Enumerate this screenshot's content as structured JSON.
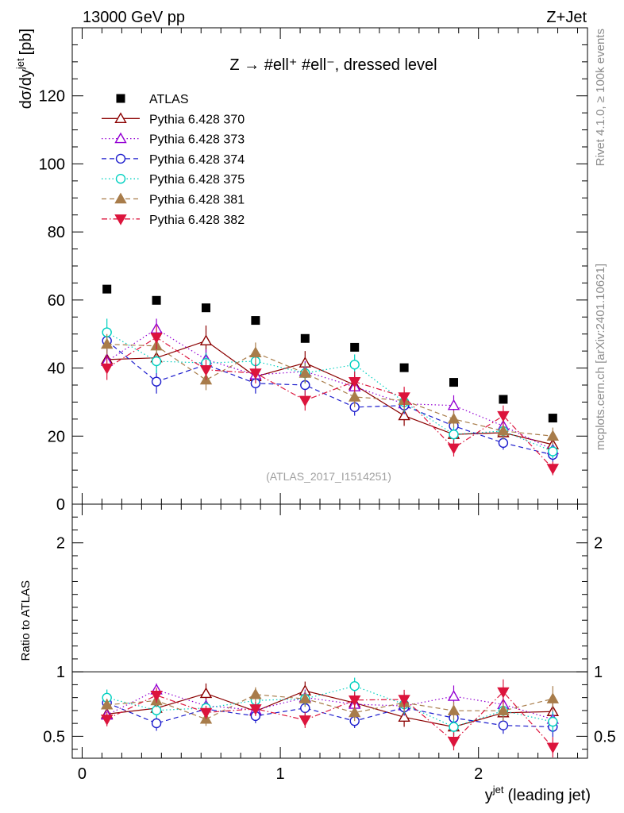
{
  "header": {
    "energy_label": "13000 GeV pp",
    "process_label": "Z+Jet"
  },
  "side_labels": {
    "rivet": "Rivet 4.1.0, ≥ 100k events",
    "mcplots": "mcplots.cern.ch [arXiv:2401.10621]"
  },
  "chart_data": {
    "type": "scatter",
    "title": "Z → #ell⁺ #ell⁻, dressed level",
    "analysis_id": "(ATLAS_2017_I1514251)",
    "xlabel": "y^jet (leading jet)",
    "xlabel_main": "y",
    "xlabel_sup": "jet",
    "xlabel_rest": "(leading jet)",
    "ylabel": "dσ/dy^jet [pb]",
    "ylabel_main": "dσ/dy",
    "ylabel_sup": "jet",
    "ylabel_rest": "[pb]",
    "ratio_ylabel": "Ratio to ATLAS",
    "xlim": [
      -0.05,
      2.55
    ],
    "ylim": [
      0,
      140
    ],
    "ratio_ylim": [
      0.33,
      2.3
    ],
    "x_ticks": [
      0,
      1,
      2
    ],
    "x_tick_labels": [
      "0",
      "1",
      "2"
    ],
    "y_ticks": [
      0,
      20,
      40,
      60,
      80,
      100,
      120
    ],
    "y_tick_labels": [
      "0",
      "20",
      "40",
      "60",
      "80",
      "100",
      "120"
    ],
    "ratio_ticks": [
      0.5,
      1,
      2
    ],
    "ratio_tick_labels": [
      "0.5",
      "1",
      "2"
    ],
    "x": [
      0.125,
      0.375,
      0.625,
      0.875,
      1.125,
      1.375,
      1.625,
      1.875,
      2.125,
      2.375
    ],
    "reference": {
      "name": "ATLAS",
      "values": [
        63.2,
        59.9,
        57.7,
        54.0,
        48.7,
        46.1,
        40.1,
        35.8,
        30.8,
        25.3
      ],
      "color": "#000000"
    },
    "series": [
      {
        "name": "Pythia 6.428 370",
        "color": "#8b0000",
        "style": "solid",
        "marker": "triangle-up-open",
        "values": [
          42.5,
          43.0,
          48.0,
          37.5,
          41.5,
          35.0,
          26.0,
          20.5,
          21.0,
          17.5
        ],
        "errors": [
          3.0,
          3.0,
          4.5,
          3.0,
          3.5,
          3.0,
          3.0,
          2.5,
          2.5,
          2.5
        ]
      },
      {
        "name": "Pythia 6.428 373",
        "color": "#9400d3",
        "style": "dotted",
        "marker": "triangle-up-open",
        "values": [
          42.0,
          51.5,
          42.5,
          38.0,
          39.0,
          34.5,
          29.5,
          29.0,
          23.0,
          16.0
        ],
        "errors": [
          3.0,
          3.0,
          3.0,
          3.0,
          3.0,
          3.0,
          3.0,
          3.0,
          2.5,
          2.5
        ]
      },
      {
        "name": "Pythia 6.428 374",
        "color": "#1e1ecd",
        "style": "dashed",
        "marker": "circle-open",
        "values": [
          48.0,
          36.0,
          41.0,
          35.5,
          35.0,
          28.5,
          29.0,
          23.0,
          18.0,
          14.5
        ],
        "errors": [
          3.0,
          3.5,
          3.0,
          3.0,
          3.0,
          2.5,
          2.5,
          2.5,
          2.0,
          2.0
        ]
      },
      {
        "name": "Pythia 6.428 375",
        "color": "#00d0c0",
        "style": "dotted",
        "marker": "circle-open",
        "values": [
          50.5,
          42.0,
          41.5,
          42.0,
          38.5,
          41.0,
          30.0,
          20.5,
          21.5,
          15.5
        ],
        "errors": [
          4.0,
          3.5,
          3.0,
          3.0,
          3.0,
          3.0,
          3.0,
          2.5,
          2.5,
          2.0
        ]
      },
      {
        "name": "Pythia 6.428 381",
        "color": "#a87c4a",
        "style": "dashed",
        "marker": "triangle-up-filled",
        "values": [
          47.0,
          46.5,
          36.5,
          44.5,
          38.5,
          31.5,
          30.5,
          25.0,
          21.5,
          20.0
        ],
        "errors": [
          3.0,
          3.0,
          3.0,
          3.0,
          3.0,
          3.0,
          3.0,
          2.5,
          2.5,
          2.5
        ]
      },
      {
        "name": "Pythia 6.428 382",
        "color": "#dc143c",
        "style": "dashdot",
        "marker": "triangle-down-filled",
        "values": [
          40.0,
          49.0,
          39.5,
          38.5,
          30.5,
          36.0,
          31.5,
          16.5,
          26.0,
          10.5
        ],
        "errors": [
          3.5,
          3.5,
          3.0,
          3.0,
          3.0,
          3.0,
          3.0,
          2.5,
          3.0,
          2.0
        ]
      }
    ]
  }
}
